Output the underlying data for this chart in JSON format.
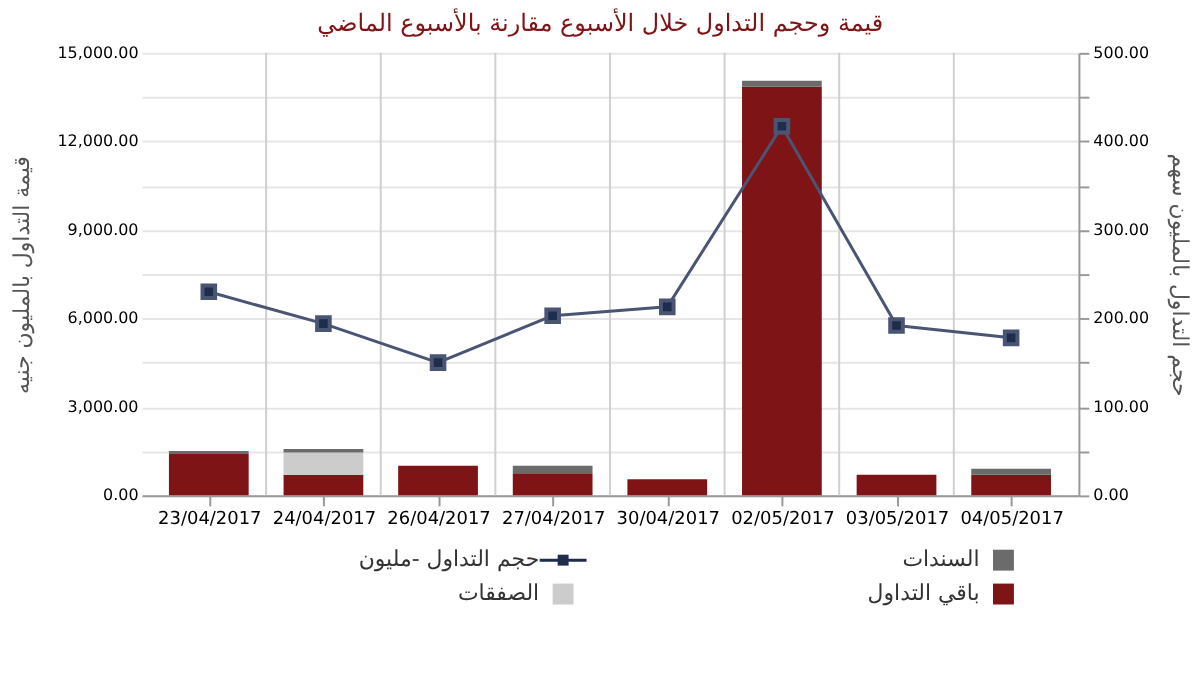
{
  "chart_data": {
    "type": "bar",
    "title": "قيمة وحجم التداول خلال الأسبوع مقارنة بالأسبوع الماضي",
    "ylabel": "قيمة التداول بالمليون جنيه",
    "y2label": "حجم التداول بالمليون سهم",
    "categories": [
      "23/04/2017",
      "24/04/2017",
      "26/04/2017",
      "27/04/2017",
      "30/04/2017",
      "02/05/2017",
      "03/05/2017",
      "04/05/2017"
    ],
    "stacked": true,
    "series": [
      {
        "name": "باقي التداول",
        "color": "#7f1416",
        "values": [
          1400,
          700,
          1000,
          750,
          550,
          13850,
          700,
          700
        ]
      },
      {
        "name": "الصفقات",
        "color": "#cccccc",
        "values": [
          0,
          750,
          0,
          0,
          0,
          0,
          0,
          0
        ]
      },
      {
        "name": "السندات",
        "color": "#6b6b6b",
        "values": [
          100,
          120,
          0,
          250,
          0,
          200,
          0,
          200
        ]
      },
      {
        "name": "حجم التداول -مليون",
        "type": "line",
        "axis": "y2",
        "color": "#4a5573",
        "marker": "square",
        "values": [
          230,
          194,
          150,
          203,
          213,
          417,
          192,
          178
        ]
      }
    ],
    "ylim": [
      0,
      15000
    ],
    "yticks": [
      {
        "value": 0,
        "label": "0.00"
      },
      {
        "value": 1500,
        "label": null
      },
      {
        "value": 3000,
        "label": "3,000.00"
      },
      {
        "value": 4500,
        "label": null
      },
      {
        "value": 6000,
        "label": "6,000.00"
      },
      {
        "value": 7500,
        "label": null
      },
      {
        "value": 9000,
        "label": "9,000.00"
      },
      {
        "value": 10500,
        "label": null
      },
      {
        "value": 12000,
        "label": "12,000.00"
      },
      {
        "value": 13500,
        "label": null
      },
      {
        "value": 15000,
        "label": "15,000.00"
      }
    ],
    "y2lim": [
      0,
      500
    ],
    "y2ticks": [
      {
        "value": 0,
        "label": "0.00"
      },
      {
        "value": 50,
        "label": null
      },
      {
        "value": 100,
        "label": "100.00"
      },
      {
        "value": 150,
        "label": null
      },
      {
        "value": 200,
        "label": "200.00"
      },
      {
        "value": 250,
        "label": null
      },
      {
        "value": 300,
        "label": "300.00"
      },
      {
        "value": 350,
        "label": null
      },
      {
        "value": 400,
        "label": "400.00"
      },
      {
        "value": 450,
        "label": null
      },
      {
        "value": 500,
        "label": "500.00"
      }
    ],
    "grid": true,
    "legend": "bottom"
  }
}
